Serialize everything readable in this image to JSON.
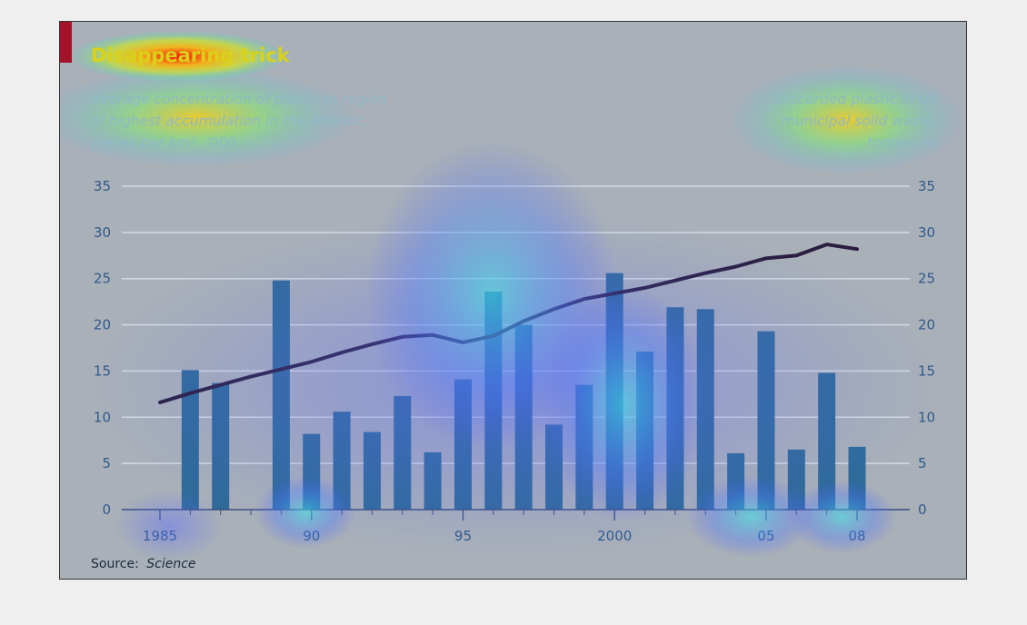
{
  "chart_data": {
    "type": "bar",
    "title": "Disappearing trick",
    "left_axis_label": [
      "Average concentration of plastic in region",
      "of highest accumulation in the Atlantic,",
      "pieces per km², ’000"
    ],
    "right_axis_label": [
      "Discarded plastic in US",
      "municipal solid waste,",
      "tonnes, m"
    ],
    "source_label": "Source:",
    "source_name": "Science",
    "ylim": [
      0,
      35
    ],
    "y_ticks": [
      "0",
      "5",
      "10",
      "15",
      "20",
      "25",
      "30",
      "35"
    ],
    "x_ticks": [
      {
        "label": "1985",
        "x": 1985
      },
      {
        "label": "90",
        "x": 1990
      },
      {
        "label": "95",
        "x": 1995
      },
      {
        "label": "2000",
        "x": 2000
      },
      {
        "label": "05",
        "x": 2005
      },
      {
        "label": "08",
        "x": 2008
      }
    ],
    "bars": [
      {
        "x": 1986,
        "value": 15.1
      },
      {
        "x": 1987,
        "value": 13.7
      },
      {
        "x": 1989,
        "value": 24.8
      },
      {
        "x": 1990,
        "value": 8.2
      },
      {
        "x": 1991,
        "value": 10.6
      },
      {
        "x": 1992,
        "value": 8.4
      },
      {
        "x": 1993,
        "value": 12.3
      },
      {
        "x": 1994,
        "value": 6.2
      },
      {
        "x": 1995,
        "value": 14.1
      },
      {
        "x": 1996,
        "value": 23.6
      },
      {
        "x": 1997,
        "value": 20.0
      },
      {
        "x": 1998,
        "value": 9.2
      },
      {
        "x": 1999,
        "value": 13.5
      },
      {
        "x": 2000,
        "value": 25.6
      },
      {
        "x": 2001,
        "value": 17.1
      },
      {
        "x": 2002,
        "value": 21.9
      },
      {
        "x": 2003,
        "value": 21.7
      },
      {
        "x": 2004,
        "value": 6.1
      },
      {
        "x": 2005,
        "value": 19.3
      },
      {
        "x": 2006,
        "value": 6.5
      },
      {
        "x": 2007,
        "value": 14.8
      },
      {
        "x": 2008,
        "value": 6.8
      }
    ],
    "line": [
      {
        "x": 1985,
        "value": 11.6
      },
      {
        "x": 1986,
        "value": 12.6
      },
      {
        "x": 1987,
        "value": 13.5
      },
      {
        "x": 1988,
        "value": 14.4
      },
      {
        "x": 1989,
        "value": 15.2
      },
      {
        "x": 1990,
        "value": 16.0
      },
      {
        "x": 1991,
        "value": 17.0
      },
      {
        "x": 1992,
        "value": 17.9
      },
      {
        "x": 1993,
        "value": 18.7
      },
      {
        "x": 1994,
        "value": 18.9
      },
      {
        "x": 1995,
        "value": 18.1
      },
      {
        "x": 1996,
        "value": 18.8
      },
      {
        "x": 1997,
        "value": 20.4
      },
      {
        "x": 1998,
        "value": 21.7
      },
      {
        "x": 1999,
        "value": 22.8
      },
      {
        "x": 2000,
        "value": 23.4
      },
      {
        "x": 2001,
        "value": 24.0
      },
      {
        "x": 2002,
        "value": 24.8
      },
      {
        "x": 2003,
        "value": 25.6
      },
      {
        "x": 2004,
        "value": 26.3
      },
      {
        "x": 2005,
        "value": 27.2
      },
      {
        "x": 2006,
        "value": 27.5
      },
      {
        "x": 2007,
        "value": 28.7
      },
      {
        "x": 2008,
        "value": 28.2
      }
    ],
    "grid": true,
    "colors": {
      "background": "#a9b0b8",
      "bar": "#2f6a98",
      "line": "#2a1d3f",
      "gridline": "#d6dbe0",
      "axis": "#3b4f80",
      "tick_text": "#2f5a8a",
      "accent": "#a4132a"
    }
  }
}
